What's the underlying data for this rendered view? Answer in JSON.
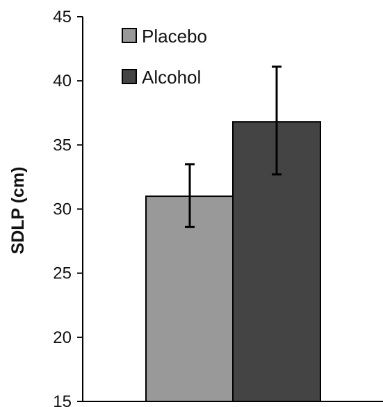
{
  "chart_data": {
    "type": "bar",
    "title": "",
    "xlabel": "",
    "ylabel": "SDLP (cm)",
    "ylim": [
      15,
      45
    ],
    "yticks": [
      15,
      20,
      25,
      30,
      35,
      40,
      45
    ],
    "grid": false,
    "legend_position": "top-left",
    "series": [
      {
        "name": "Placebo",
        "value": 31.0,
        "error_low": 28.6,
        "error_high": 33.5,
        "color": "#999999"
      },
      {
        "name": "Alcohol",
        "value": 36.8,
        "error_low": 32.7,
        "error_high": 41.1,
        "color": "#444444"
      }
    ]
  }
}
